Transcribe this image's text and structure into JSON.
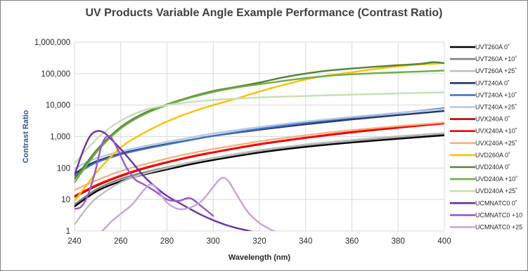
{
  "chart_data": {
    "type": "line",
    "title": "UV Products Variable Angle Example Performance (Contrast Ratio)",
    "xlabel": "Wavelength (nm)",
    "ylabel": "Contrast Ratio",
    "xlim": [
      240,
      400
    ],
    "ylim": [
      1,
      1000000
    ],
    "yscale": "log",
    "grid": true,
    "legend_position": "right",
    "x_ticks": [
      "240",
      "260",
      "280",
      "300",
      "320",
      "340",
      "360",
      "380",
      "400"
    ],
    "y_ticks": [
      "1",
      "10",
      "100",
      "1,000",
      "10,000",
      "100,000",
      "1,000,000"
    ],
    "x_tick_values": [
      240,
      260,
      280,
      300,
      320,
      340,
      360,
      380,
      400
    ],
    "y_tick_values": [
      1,
      10,
      100,
      1000,
      10000,
      100000,
      1000000
    ],
    "colors": {
      "title": "#404040",
      "ylabel": "#2f5597",
      "xlabel": "#262626",
      "grid": "#d9d9d9"
    },
    "series": [
      {
        "name": "UVT260A 0˚",
        "color": "#000000",
        "x": [
          240,
          250,
          260,
          270,
          280,
          290,
          300,
          320,
          340,
          360,
          380,
          400
        ],
        "y": [
          6,
          19,
          38,
          62,
          90,
          130,
          180,
          310,
          470,
          650,
          850,
          1100
        ]
      },
      {
        "name": "UVT260A +10˚",
        "color": "#7f7f7f",
        "x": [
          240,
          250,
          260,
          270,
          280,
          290,
          300,
          320,
          340,
          360,
          380,
          400
        ],
        "y": [
          7,
          22,
          45,
          72,
          105,
          150,
          210,
          360,
          540,
          750,
          980,
          1250
        ]
      },
      {
        "name": "UVT260A +25˚",
        "color": "#bfbfbf",
        "x": [
          240,
          245,
          250,
          260,
          270,
          280,
          290,
          300,
          320,
          340,
          360,
          380,
          400
        ],
        "y": [
          1.6,
          5,
          12,
          35,
          65,
          100,
          150,
          210,
          370,
          560,
          780,
          1020,
          1300
        ]
      },
      {
        "name": "UVT240A 0˚",
        "color": "#1f3864",
        "x": [
          240,
          245,
          250,
          260,
          270,
          280,
          290,
          300,
          320,
          340,
          360,
          380,
          400
        ],
        "y": [
          65,
          115,
          170,
          290,
          420,
          580,
          780,
          1050,
          1650,
          2450,
          3500,
          4800,
          6500
        ]
      },
      {
        "name": "UVT240A +10˚",
        "color": "#4472c4",
        "x": [
          240,
          245,
          250,
          260,
          270,
          280,
          290,
          300,
          320,
          340,
          360,
          380,
          400
        ],
        "y": [
          55,
          100,
          155,
          270,
          400,
          560,
          770,
          1050,
          1750,
          2700,
          4000,
          5600,
          8000
        ]
      },
      {
        "name": "UVT240A +25˚",
        "color": "#b4c7e7",
        "x": [
          240,
          245,
          250,
          260,
          270,
          280,
          290,
          300,
          320,
          340,
          360,
          380,
          400
        ],
        "y": [
          95,
          150,
          210,
          340,
          490,
          680,
          920,
          1250,
          2000,
          3000,
          4200,
          5700,
          7500
        ]
      },
      {
        "name": "UVX240A 0˚",
        "color": "#c00000",
        "x": [
          240,
          250,
          260,
          270,
          280,
          290,
          300,
          320,
          340,
          360,
          380,
          400
        ],
        "y": [
          12,
          28,
          55,
          95,
          150,
          220,
          310,
          560,
          900,
          1350,
          1900,
          2600
        ]
      },
      {
        "name": "UVX240A +10˚",
        "color": "#ff0000",
        "x": [
          240,
          250,
          260,
          270,
          280,
          290,
          300,
          320,
          340,
          360,
          380,
          400
        ],
        "y": [
          13,
          30,
          58,
          100,
          155,
          230,
          320,
          580,
          930,
          1400,
          1950,
          2650
        ]
      },
      {
        "name": "UVX240A +25˚",
        "color": "#f4b183",
        "x": [
          240,
          250,
          260,
          270,
          280,
          290,
          300,
          320,
          340,
          360,
          380,
          400
        ],
        "y": [
          20,
          42,
          80,
          130,
          200,
          290,
          400,
          700,
          1100,
          1600,
          2150,
          2800
        ]
      },
      {
        "name": "UVD260A 0˚",
        "color": "#ffc000",
        "x": [
          240,
          250,
          260,
          270,
          280,
          290,
          300,
          310,
          320,
          330,
          340,
          350,
          360,
          370,
          380,
          390,
          400
        ],
        "y": [
          9,
          80,
          450,
          1300,
          3000,
          5800,
          10000,
          16000,
          27000,
          43000,
          65000,
          88000,
          110000,
          140000,
          170000,
          195000,
          215000
        ]
      },
      {
        "name": "UVD240A 0˚",
        "color": "#548235",
        "x": [
          240,
          250,
          260,
          270,
          280,
          290,
          300,
          310,
          320,
          330,
          340,
          350,
          360,
          370,
          380,
          390,
          395,
          400
        ],
        "y": [
          45,
          400,
          2000,
          5500,
          10500,
          18000,
          28000,
          38000,
          52000,
          75000,
          100000,
          125000,
          145000,
          165000,
          185000,
          205000,
          230000,
          215000
        ]
      },
      {
        "name": "UVD240A +10˚",
        "color": "#70ad47",
        "x": [
          240,
          250,
          260,
          270,
          280,
          290,
          300,
          310,
          320,
          330,
          340,
          350,
          360,
          370,
          380,
          390,
          400
        ],
        "y": [
          35,
          350,
          1800,
          5000,
          10000,
          17000,
          26000,
          36000,
          46000,
          58000,
          72000,
          85000,
          95000,
          103000,
          110000,
          117000,
          125000
        ]
      },
      {
        "name": "UVD240A +25˚",
        "color": "#c5e0b4",
        "x": [
          240,
          250,
          260,
          270,
          280,
          290,
          300,
          310,
          320,
          340,
          360,
          380,
          400
        ],
        "y": [
          140,
          900,
          3200,
          6800,
          10000,
          12500,
          14500,
          16000,
          17500,
          19500,
          21500,
          23500,
          25500
        ]
      },
      {
        "name": "UCMNATC0 0˚",
        "color": "#7030a0",
        "x": [
          240,
          244,
          247,
          250,
          253,
          256,
          260,
          265,
          270,
          275,
          280,
          285,
          290,
          295,
          300,
          305,
          310,
          315,
          318
        ],
        "y": [
          60,
          400,
          1100,
          1500,
          1300,
          800,
          400,
          150,
          55,
          25,
          13,
          8,
          5,
          3.2,
          2.2,
          1.6,
          1.25,
          1.03,
          0.9
        ]
      },
      {
        "name": "UCMNATC0 +10",
        "color": "#9a57cd",
        "x": [
          240,
          243,
          246,
          249,
          252,
          255,
          258,
          262,
          266,
          270,
          275,
          280,
          285,
          290,
          295,
          300
        ],
        "y": [
          5,
          6,
          15,
          80,
          600,
          1050,
          500,
          120,
          45,
          30,
          18,
          10,
          9,
          11,
          6,
          3
        ]
      },
      {
        "name": "UCMNATC0 +25",
        "color": "#c8a2e0",
        "x": [
          252,
          256,
          260,
          265,
          270,
          273,
          276,
          280,
          285,
          290,
          295,
          300,
          303,
          305,
          307,
          310,
          315,
          320,
          325,
          328
        ],
        "y": [
          1,
          2,
          3.5,
          7,
          20,
          30,
          20,
          8,
          5,
          5.5,
          9,
          25,
          45,
          48,
          35,
          15,
          4,
          1.8,
          1.1,
          0.9
        ]
      }
    ]
  }
}
